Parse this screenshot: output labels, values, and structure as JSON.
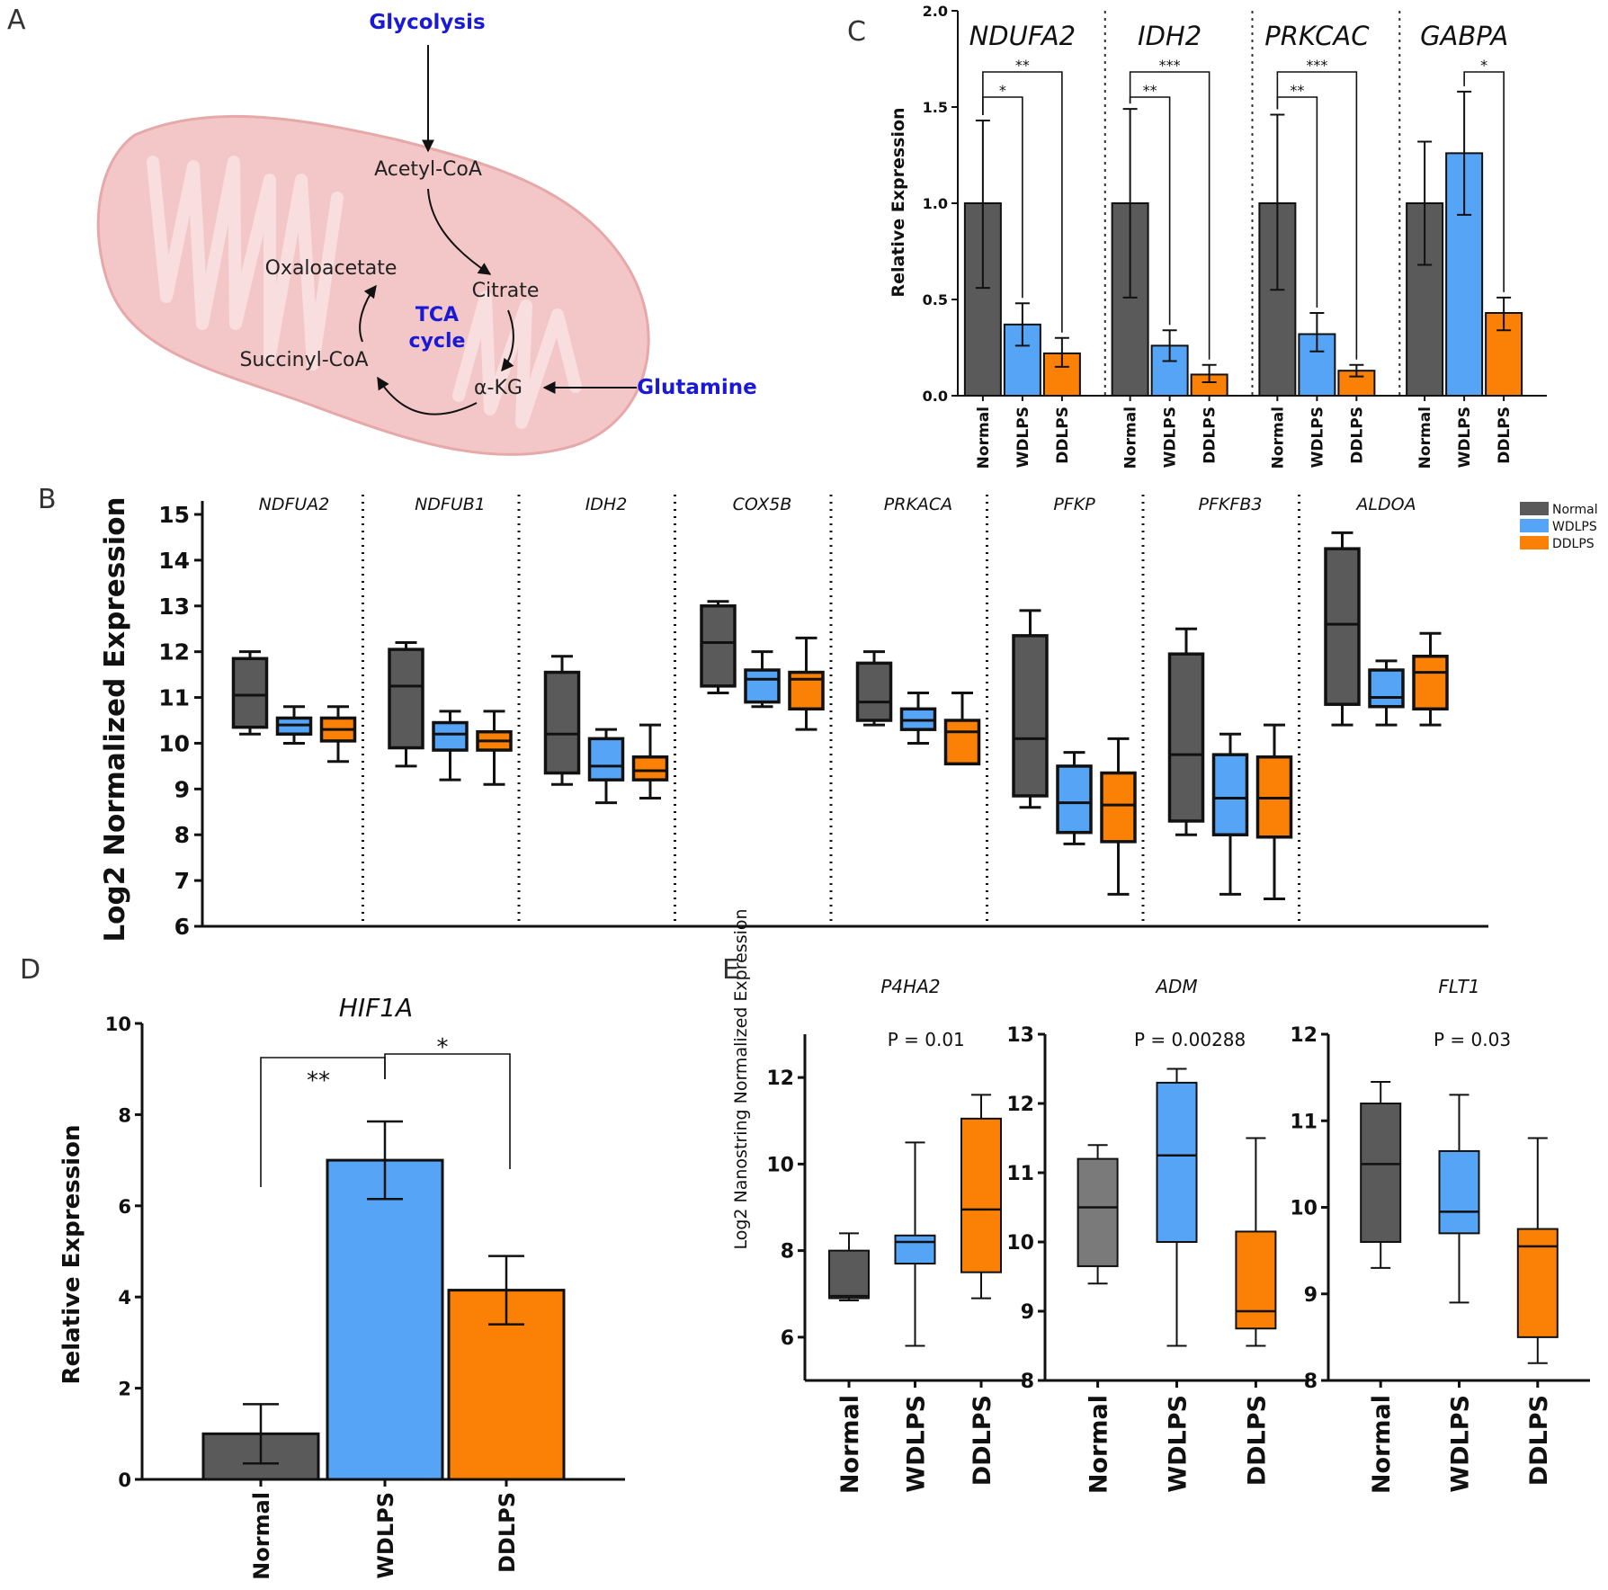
{
  "figure": {
    "panel_labels": [
      "A",
      "B",
      "C",
      "D",
      "E"
    ],
    "colors": {
      "Normal": "#5a5a5a",
      "WDLPS": "#56a4f5",
      "DDLPS": "#fb8006",
      "Normal_light": "#7a7a7a",
      "pathway_blue": "#1a1ad6",
      "mito_fill": "#f3c7c7",
      "mito_inner": "#f8dede"
    }
  },
  "panel_a": {
    "glycolysis": "Glycolysis",
    "acetyl_coa": "Acetyl-CoA",
    "oxaloacetate": "Oxaloacetate",
    "citrate": "Citrate",
    "tca_line1": "TCA",
    "tca_line2": "cycle",
    "succinyl_coa": "Succinyl-CoA",
    "akg": "α-KG",
    "glutamine": "Glutamine"
  },
  "chart_data": [
    {
      "id": "C",
      "type": "bar",
      "ylabel": "Relative Expression",
      "ylim": [
        0,
        2.0
      ],
      "yticks": [
        "0.0",
        "0.5",
        "1.0",
        "1.5",
        "2.0"
      ],
      "groups": [
        "Normal",
        "WDLPS",
        "DDLPS"
      ],
      "genes": [
        {
          "name": "NDUFA2",
          "values": [
            1.0,
            0.37,
            0.22
          ],
          "err_low": [
            0.56,
            0.26,
            0.15
          ],
          "err_high": [
            1.43,
            0.48,
            0.3
          ],
          "sig": [
            {
              "a": 0,
              "b": 1,
              "label": "*"
            },
            {
              "a": 0,
              "b": 2,
              "label": "**"
            }
          ]
        },
        {
          "name": "IDH2",
          "values": [
            1.0,
            0.26,
            0.11
          ],
          "err_low": [
            0.51,
            0.18,
            0.07
          ],
          "err_high": [
            1.49,
            0.34,
            0.16
          ],
          "sig": [
            {
              "a": 0,
              "b": 1,
              "label": "**"
            },
            {
              "a": 0,
              "b": 2,
              "label": "***"
            }
          ]
        },
        {
          "name": "PRKCAC",
          "values": [
            1.0,
            0.32,
            0.13
          ],
          "err_low": [
            0.55,
            0.23,
            0.1
          ],
          "err_high": [
            1.46,
            0.43,
            0.16
          ],
          "sig": [
            {
              "a": 0,
              "b": 1,
              "label": "**"
            },
            {
              "a": 0,
              "b": 2,
              "label": "***"
            }
          ]
        },
        {
          "name": "GABPA",
          "values": [
            1.0,
            1.26,
            0.43
          ],
          "err_low": [
            0.68,
            0.94,
            0.34
          ],
          "err_high": [
            1.32,
            1.58,
            0.51
          ],
          "sig": [
            {
              "a": 1,
              "b": 2,
              "label": "*"
            }
          ]
        }
      ]
    },
    {
      "id": "B",
      "type": "box",
      "ylabel": "Log2 Normalized Expression",
      "ylim": [
        6,
        15
      ],
      "yticks": [
        "6",
        "7",
        "8",
        "9",
        "10",
        "11",
        "12",
        "13",
        "14",
        "15"
      ],
      "legend": [
        "Normal",
        "WDLPS",
        "DDLPS"
      ],
      "legend_position": "top-right",
      "genes": [
        {
          "name": "NDFUA2",
          "boxes": [
            [
              10.2,
              10.35,
              11.05,
              11.85,
              12.0
            ],
            [
              10.0,
              10.2,
              10.4,
              10.55,
              10.8
            ],
            [
              9.6,
              10.05,
              10.3,
              10.55,
              10.8
            ]
          ]
        },
        {
          "name": "NDFUB1",
          "boxes": [
            [
              9.5,
              9.9,
              11.25,
              12.05,
              12.2
            ],
            [
              9.2,
              9.85,
              10.2,
              10.45,
              10.7
            ],
            [
              9.1,
              9.85,
              10.05,
              10.25,
              10.7
            ]
          ]
        },
        {
          "name": "IDH2",
          "boxes": [
            [
              9.1,
              9.35,
              10.2,
              11.55,
              11.9
            ],
            [
              8.7,
              9.2,
              9.5,
              10.1,
              10.3
            ],
            [
              8.8,
              9.2,
              9.4,
              9.7,
              10.4
            ]
          ]
        },
        {
          "name": "COX5B",
          "boxes": [
            [
              11.1,
              11.25,
              12.2,
              13.0,
              13.1
            ],
            [
              10.8,
              10.9,
              11.4,
              11.6,
              12.0
            ],
            [
              10.3,
              10.75,
              11.4,
              11.55,
              12.3
            ]
          ]
        },
        {
          "name": "PRKACA",
          "boxes": [
            [
              10.4,
              10.5,
              10.9,
              11.75,
              12.0
            ],
            [
              10.0,
              10.3,
              10.5,
              10.75,
              11.1
            ],
            [
              9.55,
              9.55,
              10.25,
              10.5,
              11.1
            ]
          ]
        },
        {
          "name": "PFKP",
          "boxes": [
            [
              8.6,
              8.85,
              10.1,
              12.35,
              12.9
            ],
            [
              7.8,
              8.05,
              8.7,
              9.5,
              9.8
            ],
            [
              6.7,
              7.85,
              8.65,
              9.35,
              10.1
            ]
          ]
        },
        {
          "name": "PFKFB3",
          "boxes": [
            [
              8.0,
              8.3,
              9.75,
              11.95,
              12.5
            ],
            [
              6.7,
              8.0,
              8.8,
              9.75,
              10.2
            ],
            [
              6.6,
              7.95,
              8.8,
              9.7,
              10.4
            ]
          ]
        },
        {
          "name": "ALDOA",
          "boxes": [
            [
              10.4,
              10.85,
              12.6,
              14.25,
              14.6
            ],
            [
              10.4,
              10.8,
              11.0,
              11.6,
              11.8
            ],
            [
              10.4,
              10.75,
              11.55,
              11.9,
              12.4
            ]
          ]
        }
      ]
    },
    {
      "id": "D",
      "type": "bar",
      "title": "HIF1A",
      "ylabel": "Relative Expression",
      "ylim": [
        0,
        10
      ],
      "yticks": [
        "0",
        "2",
        "4",
        "6",
        "8",
        "10"
      ],
      "categories": [
        "Normal",
        "WDLPS",
        "DDLPS"
      ],
      "values": [
        1.0,
        7.0,
        4.15
      ],
      "err_low": [
        0.35,
        6.15,
        3.4
      ],
      "err_high": [
        1.65,
        7.85,
        4.9
      ],
      "sig": [
        {
          "a": 0,
          "b": 1,
          "label": "**"
        },
        {
          "a": 1,
          "b": 2,
          "label": "*"
        }
      ]
    },
    {
      "id": "E",
      "type": "box",
      "ylabel": "Log2 Nanostring Normalized Expression",
      "categories": [
        "Normal",
        "WDLPS",
        "DDLPS"
      ],
      "subplots": [
        {
          "gene": "P4HA2",
          "pvalue": "P = 0.01",
          "ylim": [
            5,
            13
          ],
          "yticks": [
            "6",
            "8",
            "10",
            "12"
          ],
          "boxes": [
            [
              6.85,
              6.9,
              6.95,
              8.0,
              8.4
            ],
            [
              5.8,
              7.7,
              8.2,
              8.35,
              10.5
            ],
            [
              6.9,
              7.5,
              8.95,
              11.05,
              11.6
            ]
          ]
        },
        {
          "gene": "ADM",
          "pvalue": "P = 0.00288",
          "ylim": [
            8,
            13
          ],
          "yticks": [
            "8",
            "9",
            "10",
            "11",
            "12",
            "13"
          ],
          "boxes": [
            [
              9.4,
              9.65,
              10.5,
              11.2,
              11.4
            ],
            [
              8.5,
              10.0,
              11.25,
              12.3,
              12.5
            ],
            [
              8.5,
              8.75,
              9.0,
              10.15,
              11.5
            ]
          ]
        },
        {
          "gene": "FLT1",
          "pvalue": "P = 0.03",
          "ylim": [
            8,
            12
          ],
          "yticks": [
            "8",
            "9",
            "10",
            "11",
            "12"
          ],
          "boxes": [
            [
              9.3,
              9.6,
              10.5,
              11.2,
              11.45
            ],
            [
              8.9,
              9.7,
              9.95,
              10.65,
              11.3
            ],
            [
              8.2,
              8.5,
              9.55,
              9.75,
              10.8
            ]
          ]
        }
      ]
    }
  ]
}
